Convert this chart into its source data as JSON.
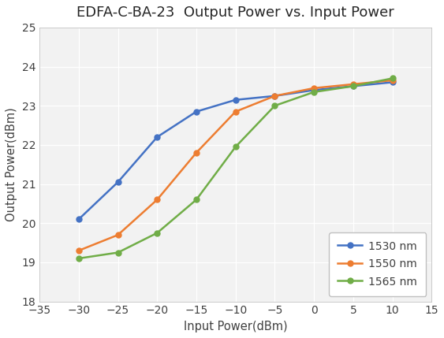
{
  "title": "EDFA-C-BA-23  Output Power vs. Input Power",
  "xlabel": "Input Power(dBm)",
  "ylabel": "Output Power(dBm)",
  "xlim": [
    -35,
    15
  ],
  "ylim": [
    18,
    25
  ],
  "xticks": [
    -35,
    -30,
    -25,
    -20,
    -15,
    -10,
    -5,
    0,
    5,
    10,
    15
  ],
  "yticks": [
    18,
    19,
    20,
    21,
    22,
    23,
    24,
    25
  ],
  "series": [
    {
      "label": "1530 nm",
      "color": "#4472C4",
      "x": [
        -30,
        -25,
        -20,
        -15,
        -10,
        -5,
        0,
        5,
        10
      ],
      "y": [
        20.1,
        21.05,
        22.2,
        22.85,
        23.15,
        23.25,
        23.4,
        23.5,
        23.6
      ]
    },
    {
      "label": "1550 nm",
      "color": "#ED7D31",
      "x": [
        -30,
        -25,
        -20,
        -15,
        -10,
        -5,
        0,
        5,
        10
      ],
      "y": [
        19.3,
        19.7,
        20.6,
        21.8,
        22.85,
        23.25,
        23.45,
        23.55,
        23.65
      ]
    },
    {
      "label": "1565 nm",
      "color": "#70AD47",
      "x": [
        -30,
        -25,
        -20,
        -15,
        -10,
        -5,
        0,
        5,
        10
      ],
      "y": [
        19.1,
        19.25,
        19.75,
        20.6,
        21.95,
        23.0,
        23.35,
        23.5,
        23.7
      ]
    }
  ],
  "outer_bg": "#ffffff",
  "plot_bg": "#f2f2f2",
  "grid_color": "#ffffff",
  "title_fontsize": 13,
  "axis_label_fontsize": 10.5,
  "tick_fontsize": 10,
  "legend_fontsize": 10,
  "line_width": 1.8,
  "marker": "o",
  "marker_size": 5
}
